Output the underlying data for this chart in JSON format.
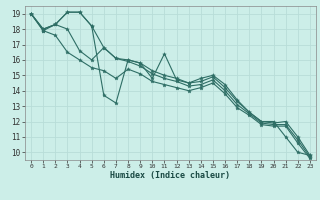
{
  "title": "",
  "xlabel": "Humidex (Indice chaleur)",
  "bg_color": "#cceee8",
  "grid_color": "#b8ddd8",
  "line_color": "#2e6e65",
  "xlim": [
    -0.5,
    23.5
  ],
  "ylim": [
    9.5,
    19.5
  ],
  "xticks": [
    0,
    1,
    2,
    3,
    4,
    5,
    6,
    7,
    8,
    9,
    10,
    11,
    12,
    13,
    14,
    15,
    16,
    17,
    18,
    19,
    20,
    21,
    22,
    23
  ],
  "yticks": [
    10,
    11,
    12,
    13,
    14,
    15,
    16,
    17,
    18,
    19
  ],
  "series": [
    [
      19.0,
      18.0,
      18.3,
      19.1,
      19.1,
      18.2,
      13.7,
      13.2,
      16.0,
      15.8,
      14.8,
      16.4,
      14.7,
      14.5,
      14.8,
      15.0,
      14.4,
      13.4,
      12.6,
      12.0,
      12.0,
      11.0,
      10.0,
      9.8
    ],
    [
      19.0,
      18.0,
      18.3,
      19.1,
      19.1,
      18.2,
      16.8,
      16.1,
      16.0,
      15.8,
      15.3,
      15.0,
      14.8,
      14.5,
      14.6,
      14.9,
      14.2,
      13.3,
      12.6,
      12.0,
      11.9,
      12.0,
      11.0,
      9.8
    ],
    [
      19.0,
      17.9,
      18.3,
      18.0,
      16.6,
      16.0,
      16.8,
      16.1,
      15.9,
      15.6,
      15.1,
      14.8,
      14.6,
      14.3,
      14.4,
      14.7,
      14.0,
      13.1,
      12.5,
      11.9,
      11.8,
      11.8,
      10.8,
      9.7
    ],
    [
      19.0,
      17.9,
      17.6,
      16.5,
      16.0,
      15.5,
      15.3,
      14.8,
      15.4,
      15.1,
      14.6,
      14.4,
      14.2,
      14.0,
      14.2,
      14.5,
      13.8,
      12.9,
      12.4,
      11.8,
      11.7,
      11.7,
      10.6,
      9.6
    ]
  ]
}
